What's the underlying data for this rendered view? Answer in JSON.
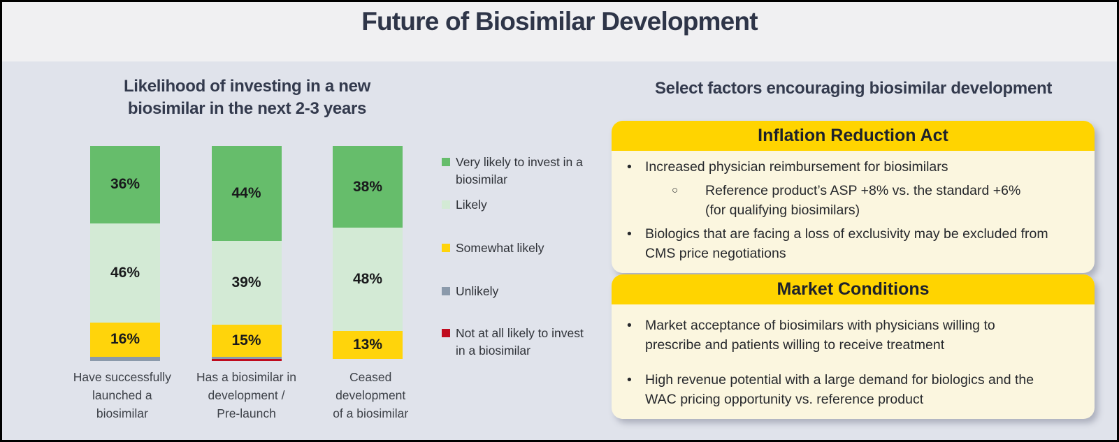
{
  "page": {
    "title": "Future of Biosimilar Development"
  },
  "chart_data": {
    "type": "bar",
    "stacked": true,
    "orientation": "vertical",
    "title": "Likelihood of investing in a new\nbiosimilar in the next 2-3 years",
    "value_suffix": "%",
    "label_threshold": 10,
    "legend_position": "right",
    "grid": false,
    "categories": [
      "Have successfully\nlaunched a\nbiosimilar",
      "Has a biosimilar in\ndevelopment /\nPre-launch",
      "Ceased\ndevelopment\nof a biosimilar"
    ],
    "series": [
      {
        "name": "Very likely to invest in a biosimilar",
        "color": "#66bd6b",
        "values": [
          36,
          44,
          38
        ]
      },
      {
        "name": "Likely",
        "color": "#d3ead5",
        "values": [
          46,
          39,
          48
        ]
      },
      {
        "name": "Somewhat likely",
        "color": "#ffd40b",
        "values": [
          16,
          15,
          13
        ]
      },
      {
        "name": "Unlikely",
        "color": "#8b9aab",
        "values": [
          2,
          1,
          0
        ]
      },
      {
        "name": "Not at all likely to invest in a biosimilar",
        "color": "#c00b1e",
        "values": [
          0,
          1,
          0
        ]
      }
    ]
  },
  "right": {
    "title": "Select factors encouraging biosimilar development",
    "boxes": [
      {
        "header": "Inflation Reduction Act",
        "bullets": [
          {
            "level": 1,
            "text": "Increased physician reimbursement for biosimilars"
          },
          {
            "level": 2,
            "text": "Reference product’s ASP +8% vs. the standard +6%\n(for qualifying biosimilars)"
          },
          {
            "level": 1,
            "text": "Biologics that are facing a loss of exclusivity may be excluded from\nCMS price negotiations"
          }
        ]
      },
      {
        "header": "Market Conditions",
        "bullets": [
          {
            "level": 1,
            "text": "Market acceptance of biosimilars with physicians willing to\nprescribe and patients willing to receive treatment"
          },
          {
            "level": 1,
            "text": "High revenue potential with a large demand for biologics and the\nWAC pricing opportunity vs. reference product"
          }
        ]
      }
    ]
  },
  "colors": {
    "header_background": "#f0f0f2",
    "body_background": "#e0e3eb",
    "title_text": "#2e3548",
    "box_header_yellow": "#ffd400",
    "box_body_cream": "#fbf6df",
    "green_very_likely": "#66bd6b",
    "green_likely": "#d3ead5",
    "yellow_somewhat": "#ffd40b",
    "gray_unlikely": "#8b9aab",
    "red_not_at_all": "#c00b1e"
  }
}
